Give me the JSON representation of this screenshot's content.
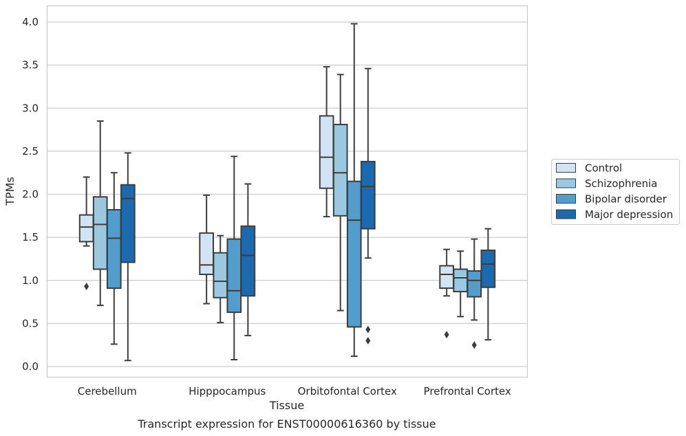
{
  "chart_data": {
    "type": "box",
    "xlabel": "Tissue",
    "ylabel": "TPMs",
    "caption": "Transcript expression for ENST00000616360 by tissue",
    "ylim": [
      -0.12,
      4.18
    ],
    "yticks": [
      0.0,
      0.5,
      1.0,
      1.5,
      2.0,
      2.5,
      3.0,
      3.5,
      4.0
    ],
    "ytick_labels": [
      "0.0",
      "0.5",
      "1.0",
      "1.5",
      "2.0",
      "2.5",
      "3.0",
      "3.5",
      "4.0"
    ],
    "grid": "horizontal",
    "legend_position": "right",
    "categories": [
      "Cerebellum",
      "Hipppocampus",
      "Orbitofontal Cortex",
      "Prefrontal Cortex"
    ],
    "series": [
      {
        "name": "Control",
        "color": "#d2e3f3",
        "boxes": [
          {
            "whisker_low": 1.4,
            "q1": 1.45,
            "median": 1.62,
            "q3": 1.76,
            "whisker_high": 2.2,
            "outliers": [
              0.93
            ]
          },
          {
            "whisker_low": 0.73,
            "q1": 1.07,
            "median": 1.18,
            "q3": 1.55,
            "whisker_high": 1.99,
            "outliers": []
          },
          {
            "whisker_low": 1.74,
            "q1": 2.07,
            "median": 2.43,
            "q3": 2.91,
            "whisker_high": 3.48,
            "outliers": []
          },
          {
            "whisker_low": 0.82,
            "q1": 0.91,
            "median": 1.07,
            "q3": 1.17,
            "whisker_high": 1.36,
            "outliers": [
              0.37
            ]
          }
        ]
      },
      {
        "name": "Schizophrenia",
        "color": "#9ac8e0",
        "boxes": [
          {
            "whisker_low": 0.71,
            "q1": 1.13,
            "median": 1.65,
            "q3": 1.97,
            "whisker_high": 2.85,
            "outliers": []
          },
          {
            "whisker_low": 0.51,
            "q1": 0.8,
            "median": 0.99,
            "q3": 1.32,
            "whisker_high": 1.52,
            "outliers": []
          },
          {
            "whisker_low": 0.65,
            "q1": 1.75,
            "median": 2.25,
            "q3": 2.81,
            "whisker_high": 3.39,
            "outliers": []
          },
          {
            "whisker_low": 0.58,
            "q1": 0.87,
            "median": 1.03,
            "q3": 1.13,
            "whisker_high": 1.34,
            "outliers": []
          }
        ]
      },
      {
        "name": "Bipolar disorder",
        "color": "#529dcc",
        "boxes": [
          {
            "whisker_low": 0.26,
            "q1": 0.91,
            "median": 1.49,
            "q3": 1.82,
            "whisker_high": 2.25,
            "outliers": []
          },
          {
            "whisker_low": 0.08,
            "q1": 0.63,
            "median": 0.88,
            "q3": 1.48,
            "whisker_high": 2.44,
            "outliers": []
          },
          {
            "whisker_low": 0.12,
            "q1": 0.46,
            "median": 1.7,
            "q3": 2.15,
            "whisker_high": 3.98,
            "outliers": []
          },
          {
            "whisker_low": 0.54,
            "q1": 0.81,
            "median": 1.0,
            "q3": 1.11,
            "whisker_high": 1.48,
            "outliers": [
              0.25
            ]
          }
        ]
      },
      {
        "name": "Major depression",
        "color": "#1b69af",
        "boxes": [
          {
            "whisker_low": 0.07,
            "q1": 1.21,
            "median": 1.95,
            "q3": 2.11,
            "whisker_high": 2.48,
            "outliers": []
          },
          {
            "whisker_low": 0.36,
            "q1": 0.82,
            "median": 1.29,
            "q3": 1.63,
            "whisker_high": 2.12,
            "outliers": []
          },
          {
            "whisker_low": 1.26,
            "q1": 1.6,
            "median": 2.09,
            "q3": 2.38,
            "whisker_high": 3.46,
            "outliers": [
              0.43,
              0.3
            ]
          },
          {
            "whisker_low": 0.31,
            "q1": 0.92,
            "median": 1.19,
            "q3": 1.35,
            "whisker_high": 1.6,
            "outliers": []
          }
        ]
      }
    ]
  }
}
